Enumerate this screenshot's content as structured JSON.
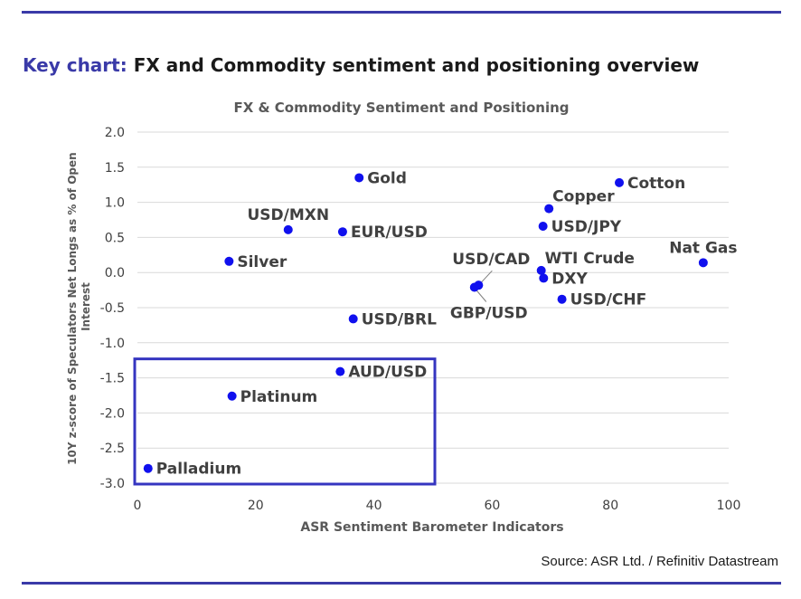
{
  "heading": {
    "accent": "Key chart:",
    "rest": "FX and Commodity sentiment and positioning overview"
  },
  "source": "Source: ASR Ltd. / Refinitiv Datastream",
  "colors": {
    "accent": "#3a3aa8",
    "marker": "#1010ee",
    "box": "#3535c0",
    "grid": "#d9d9d9",
    "text": "#404040"
  },
  "chart_data": {
    "type": "scatter",
    "title": "FX & Commodity Sentiment and Positioning",
    "xlabel": "ASR Sentiment Barometer Indicators",
    "ylabel": "10Y z-score of Speculators Net Longs as % of Open Interest",
    "xlim": [
      0,
      100
    ],
    "ylim": [
      -3.0,
      2.0
    ],
    "xticks": [
      0,
      20,
      40,
      60,
      80,
      100
    ],
    "yticks": [
      2.0,
      1.5,
      1.0,
      0.5,
      0.0,
      -0.5,
      -1.0,
      -1.5,
      -2.0,
      -2.5,
      -3.0
    ],
    "ytick_labels": [
      "2.0",
      "1.5",
      "1.0",
      "0.5",
      "0.0",
      "-0.5",
      "-1.0",
      "-1.5",
      "-2.0",
      "-2.5",
      "-3.0"
    ],
    "grid": "horizontal",
    "points": [
      {
        "label": "Gold",
        "x": 37.5,
        "y": 1.35,
        "label_pos": "right"
      },
      {
        "label": "USD/MXN",
        "x": 25.5,
        "y": 0.61,
        "label_pos": "above"
      },
      {
        "label": "EUR/USD",
        "x": 34.7,
        "y": 0.58,
        "label_pos": "right"
      },
      {
        "label": "Silver",
        "x": 15.5,
        "y": 0.16,
        "label_pos": "right"
      },
      {
        "label": "USD/BRL",
        "x": 36.5,
        "y": -0.66,
        "label_pos": "right"
      },
      {
        "label": "AUD/USD",
        "x": 34.3,
        "y": -1.41,
        "label_pos": "right"
      },
      {
        "label": "Platinum",
        "x": 16.0,
        "y": -1.76,
        "label_pos": "right"
      },
      {
        "label": "Palladium",
        "x": 1.8,
        "y": -2.79,
        "label_pos": "right"
      },
      {
        "label": "Cotton",
        "x": 81.5,
        "y": 1.28,
        "label_pos": "right"
      },
      {
        "label": "Copper",
        "x": 69.6,
        "y": 0.91,
        "label_pos": "above-right"
      },
      {
        "label": "USD/JPY",
        "x": 68.6,
        "y": 0.66,
        "label_pos": "right"
      },
      {
        "label": "Nat Gas",
        "x": 95.7,
        "y": 0.14,
        "label_pos": "above"
      },
      {
        "label": "USD/CAD",
        "x": 57.7,
        "y": -0.18,
        "label_pos": "callout-up"
      },
      {
        "label": "GBP/USD",
        "x": 57.0,
        "y": -0.21,
        "label_pos": "callout-down"
      },
      {
        "label": "WTI Crude",
        "x": 68.3,
        "y": 0.03,
        "label_pos": "above-right"
      },
      {
        "label": "DXY",
        "x": 68.7,
        "y": -0.08,
        "label_pos": "right"
      },
      {
        "label": "USD/CHF",
        "x": 71.8,
        "y": -0.38,
        "label_pos": "right"
      }
    ],
    "highlight_box": {
      "x_range": [
        0,
        50
      ],
      "y_range": [
        -3.0,
        -1.23
      ]
    }
  }
}
